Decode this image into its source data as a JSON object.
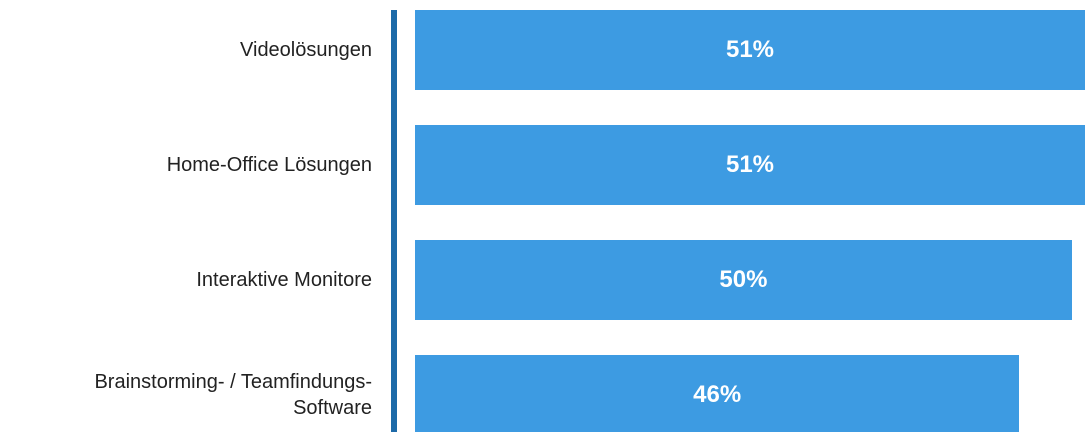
{
  "chart_data": {
    "type": "barh",
    "categories": [
      "Videolösungen",
      "Home-Office Lösungen",
      "Interaktive Monitore",
      "Brainstorming- / Teamfindungs-Software"
    ],
    "values": [
      51,
      51,
      50,
      46
    ],
    "value_labels": [
      "51%",
      "51%",
      "50%",
      "46%"
    ],
    "color": "#3d9be2"
  }
}
